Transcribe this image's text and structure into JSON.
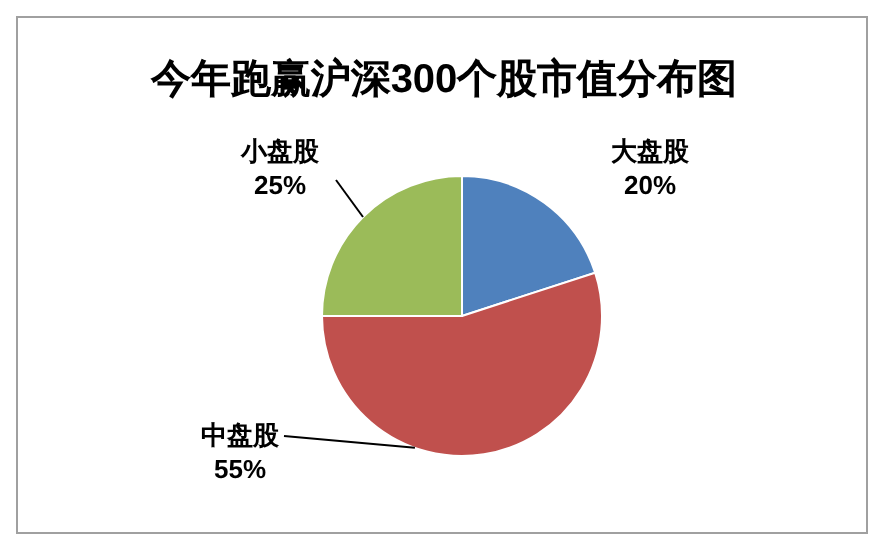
{
  "chart_data": {
    "type": "pie",
    "title": "今年跑赢沪深300个股市值分布图",
    "categories": [
      "大盘股",
      "中盘股",
      "小盘股"
    ],
    "values": [
      20,
      55,
      25
    ],
    "value_labels": [
      "20%",
      "55%",
      "25%"
    ],
    "colors": [
      "#4f81bd",
      "#c0504d",
      "#9bbb59"
    ]
  }
}
